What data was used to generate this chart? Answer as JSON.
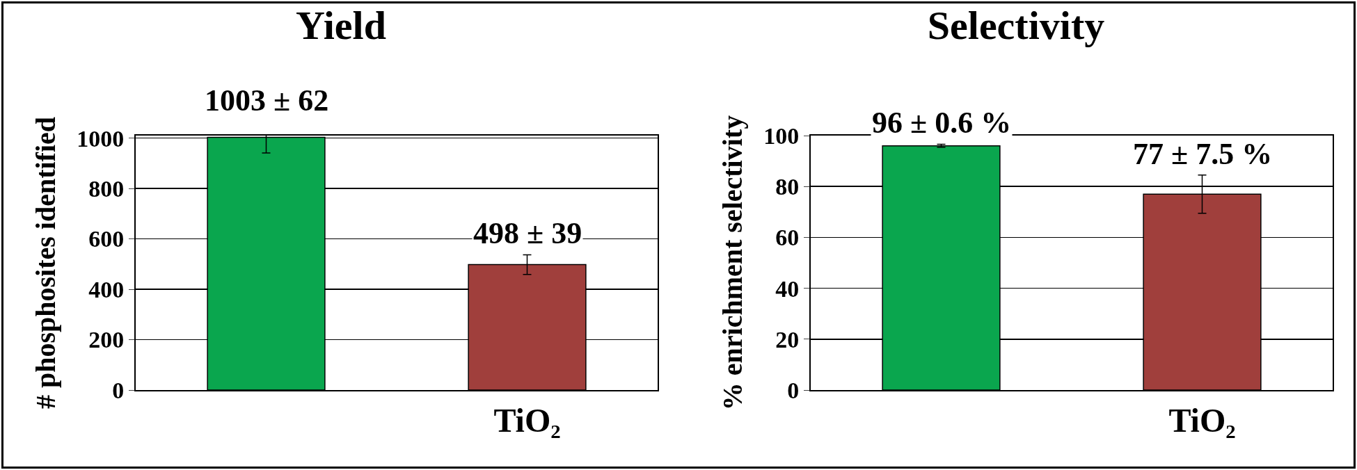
{
  "chart_data": [
    {
      "type": "bar",
      "title": "Yield",
      "ylabel": "# phosphosites identified",
      "categories": [
        null,
        "TiO₂"
      ],
      "colors": [
        "#0aa64e",
        "#a03f3c"
      ],
      "values": [
        1003,
        498
      ],
      "errors": [
        62,
        39
      ],
      "value_labels": [
        "1003 ± 62",
        "498 ± 39"
      ],
      "ylim": [
        0,
        1010
      ],
      "yticks": [
        0,
        200,
        400,
        600,
        800,
        1000
      ],
      "grid": "y"
    },
    {
      "type": "bar",
      "title": "Selectivity",
      "ylabel": "% enrichment selectivity",
      "categories": [
        null,
        "TiO₂"
      ],
      "colors": [
        "#0aa64e",
        "#a03f3c"
      ],
      "values": [
        96,
        77
      ],
      "errors": [
        0.6,
        7.5
      ],
      "value_labels": [
        "96 ± 0.6 %",
        "77 ± 7.5 %"
      ],
      "ylim": [
        0,
        100
      ],
      "yticks": [
        0,
        20,
        40,
        60,
        80,
        100
      ],
      "grid": "y"
    }
  ]
}
